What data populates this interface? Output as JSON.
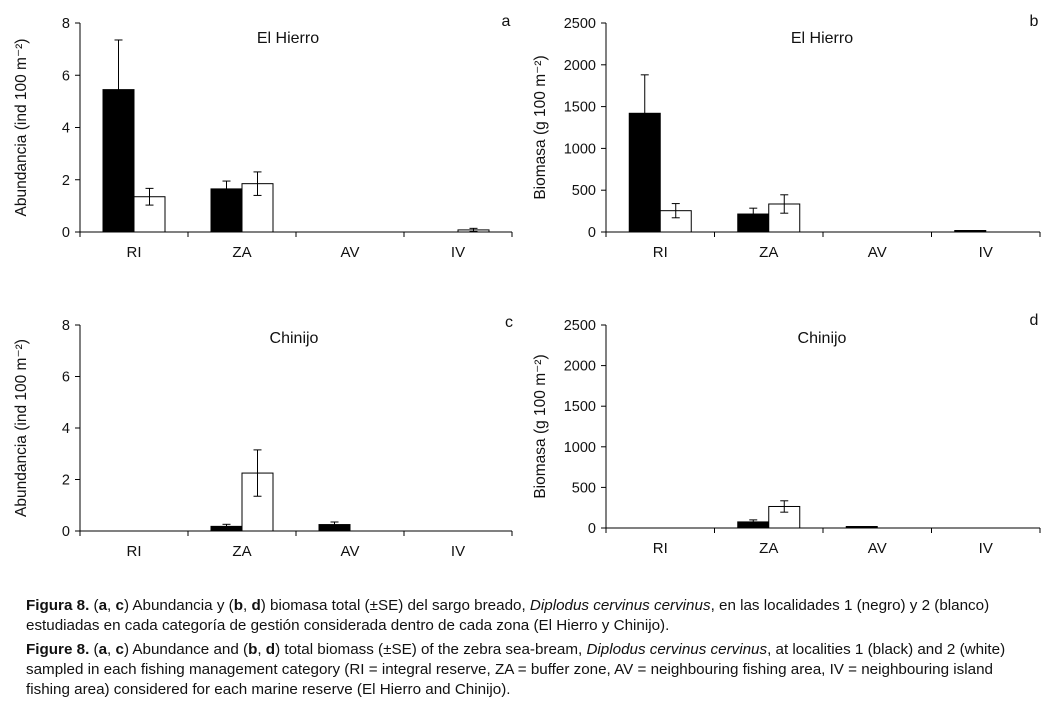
{
  "legend": {
    "series": [
      "Localidad 1 (negro)",
      "Localidad 2 (blanco)"
    ],
    "colors": [
      "#000000",
      "#ffffff"
    ]
  },
  "chart_data": [
    {
      "type": "bar",
      "panel_letter": "a",
      "title": "El Hierro",
      "xlabel": "",
      "ylabel": "Abundancia (ind 100 m⁻²)",
      "ylim": [
        0,
        8
      ],
      "yticks": [
        0,
        2,
        4,
        6,
        8
      ],
      "categories": [
        "RI",
        "ZA",
        "AV",
        "IV"
      ],
      "series": [
        {
          "name": "Localidad 1",
          "color": "#000000",
          "values": [
            5.45,
            1.65,
            0,
            0
          ],
          "errors": [
            1.9,
            0.3,
            0,
            0
          ]
        },
        {
          "name": "Localidad 2",
          "color": "#ffffff",
          "values": [
            1.35,
            1.85,
            0,
            0.08
          ],
          "errors": [
            0.32,
            0.45,
            0,
            0.06
          ]
        }
      ]
    },
    {
      "type": "bar",
      "panel_letter": "b",
      "title": "El Hierro",
      "xlabel": "",
      "ylabel": "Biomasa (g 100 m⁻²)",
      "ylim": [
        0,
        2500
      ],
      "yticks": [
        0,
        500,
        1000,
        1500,
        2000,
        2500
      ],
      "categories": [
        "RI",
        "ZA",
        "AV",
        "IV"
      ],
      "series": [
        {
          "name": "Localidad 1",
          "color": "#000000",
          "values": [
            1420,
            215,
            0,
            12
          ],
          "errors": [
            460,
            70,
            0,
            0
          ]
        },
        {
          "name": "Localidad 2",
          "color": "#ffffff",
          "values": [
            255,
            335,
            0,
            0
          ],
          "errors": [
            85,
            110,
            0,
            0
          ]
        }
      ]
    },
    {
      "type": "bar",
      "panel_letter": "c",
      "title": "Chinijo",
      "xlabel": "",
      "ylabel": "Abundancia (ind 100 m⁻²)",
      "ylim": [
        0,
        8
      ],
      "yticks": [
        0,
        2,
        4,
        6,
        8
      ],
      "categories": [
        "RI",
        "ZA",
        "AV",
        "IV"
      ],
      "series": [
        {
          "name": "Localidad 1",
          "color": "#000000",
          "values": [
            0,
            0.18,
            0.25,
            0
          ],
          "errors": [
            0,
            0.08,
            0.1,
            0
          ]
        },
        {
          "name": "Localidad 2",
          "color": "#ffffff",
          "values": [
            0,
            2.25,
            0,
            0
          ],
          "errors": [
            0,
            0.9,
            0,
            0
          ]
        }
      ]
    },
    {
      "type": "bar",
      "panel_letter": "d",
      "title": "Chinijo",
      "xlabel": "",
      "ylabel": "Biomasa (g 100 m⁻²)",
      "ylim": [
        0,
        2500
      ],
      "yticks": [
        0,
        500,
        1000,
        1500,
        2000,
        2500
      ],
      "categories": [
        "RI",
        "ZA",
        "AV",
        "IV"
      ],
      "series": [
        {
          "name": "Localidad 1",
          "color": "#000000",
          "values": [
            0,
            75,
            10,
            0
          ],
          "errors": [
            0,
            25,
            0,
            0
          ]
        },
        {
          "name": "Localidad 2",
          "color": "#ffffff",
          "values": [
            0,
            265,
            0,
            0
          ],
          "errors": [
            0,
            70,
            0,
            0
          ]
        }
      ]
    }
  ],
  "caption": {
    "es": {
      "label": "Figura 8.",
      "t1": " (",
      "b1": "a",
      "t2": ", ",
      "b2": "c",
      "t3": ") Abundancia y (",
      "b3": "b",
      "t4": ", ",
      "b4": "d",
      "t5": ") biomasa total (±SE) del sargo breado, ",
      "species": "Diplodus cervinus cervinus",
      "t6": ", en las localidades 1 (negro) y 2 (blanco) estudiadas en cada categoría de gestión considerada dentro de cada zona (El Hierro y Chinijo)."
    },
    "en": {
      "label": "Figure 8.",
      "t1": " (",
      "b1": "a",
      "t2": ", ",
      "b2": "c",
      "t3": ") Abundance and (",
      "b3": "b",
      "t4": ", ",
      "b4": "d",
      "t5": ") total biomass (±SE) of the zebra sea-bream, ",
      "species": "Diplodus cervinus cervinus",
      "t6": ", at localities 1 (black) and 2 (white) sampled in each fishing management category (RI = integral reserve, ZA = buffer zone, AV = neighbouring fishing area, IV = neighbouring island fishing area) considered for each marine reserve (El Hierro and Chinijo)."
    }
  }
}
